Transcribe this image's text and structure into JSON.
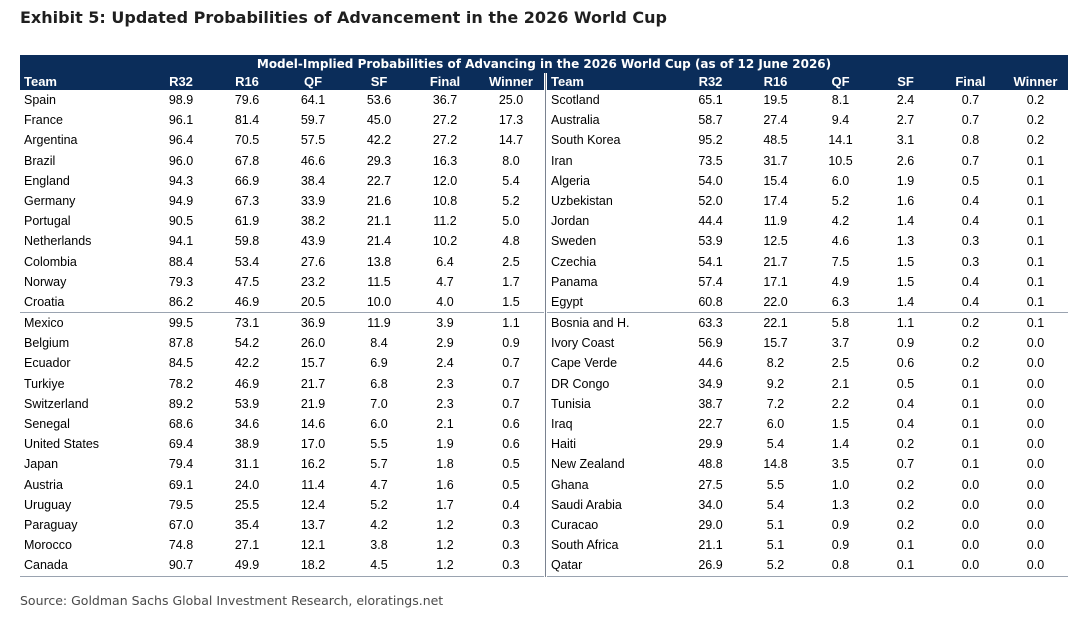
{
  "exhibit_title": "Exhibit 5: Updated Probabilities of Advancement in the 2026 World Cup",
  "source": "Source: Goldman Sachs Global Investment Research, eloratings.net",
  "chart_data": {
    "type": "table",
    "title": "Model-Implied Probabilities of Advancing in the 2026 World Cup (as of  12 June 2026)",
    "columns": [
      "Team",
      "R32",
      "R16",
      "QF",
      "SF",
      "Final",
      "Winner"
    ],
    "rows_left": [
      [
        "Spain",
        "98.9",
        "79.6",
        "64.1",
        "53.6",
        "36.7",
        "25.0"
      ],
      [
        "France",
        "96.1",
        "81.4",
        "59.7",
        "45.0",
        "27.2",
        "17.3"
      ],
      [
        "Argentina",
        "96.4",
        "70.5",
        "57.5",
        "42.2",
        "27.2",
        "14.7"
      ],
      [
        "Brazil",
        "96.0",
        "67.8",
        "46.6",
        "29.3",
        "16.3",
        "8.0"
      ],
      [
        "England",
        "94.3",
        "66.9",
        "38.4",
        "22.7",
        "12.0",
        "5.4"
      ],
      [
        "Germany",
        "94.9",
        "67.3",
        "33.9",
        "21.6",
        "10.8",
        "5.2"
      ],
      [
        "Portugal",
        "90.5",
        "61.9",
        "38.2",
        "21.1",
        "11.2",
        "5.0"
      ],
      [
        "Netherlands",
        "94.1",
        "59.8",
        "43.9",
        "21.4",
        "10.2",
        "4.8"
      ],
      [
        "Colombia",
        "88.4",
        "53.4",
        "27.6",
        "13.8",
        "6.4",
        "2.5"
      ],
      [
        "Norway",
        "79.3",
        "47.5",
        "23.2",
        "11.5",
        "4.7",
        "1.7"
      ],
      [
        "Croatia",
        "86.2",
        "46.9",
        "20.5",
        "10.0",
        "4.0",
        "1.5"
      ],
      [
        "Mexico",
        "99.5",
        "73.1",
        "36.9",
        "11.9",
        "3.9",
        "1.1"
      ],
      [
        "Belgium",
        "87.8",
        "54.2",
        "26.0",
        "8.4",
        "2.9",
        "0.9"
      ],
      [
        "Ecuador",
        "84.5",
        "42.2",
        "15.7",
        "6.9",
        "2.4",
        "0.7"
      ],
      [
        "Turkiye",
        "78.2",
        "46.9",
        "21.7",
        "6.8",
        "2.3",
        "0.7"
      ],
      [
        "Switzerland",
        "89.2",
        "53.9",
        "21.9",
        "7.0",
        "2.3",
        "0.7"
      ],
      [
        "Senegal",
        "68.6",
        "34.6",
        "14.6",
        "6.0",
        "2.1",
        "0.6"
      ],
      [
        "United States",
        "69.4",
        "38.9",
        "17.0",
        "5.5",
        "1.9",
        "0.6"
      ],
      [
        "Japan",
        "79.4",
        "31.1",
        "16.2",
        "5.7",
        "1.8",
        "0.5"
      ],
      [
        "Austria",
        "69.1",
        "24.0",
        "11.4",
        "4.7",
        "1.6",
        "0.5"
      ],
      [
        "Uruguay",
        "79.5",
        "25.5",
        "12.4",
        "5.2",
        "1.7",
        "0.4"
      ],
      [
        "Paraguay",
        "67.0",
        "35.4",
        "13.7",
        "4.2",
        "1.2",
        "0.3"
      ],
      [
        "Morocco",
        "74.8",
        "27.1",
        "12.1",
        "3.8",
        "1.2",
        "0.3"
      ],
      [
        "Canada",
        "90.7",
        "49.9",
        "18.2",
        "4.5",
        "1.2",
        "0.3"
      ]
    ],
    "rows_right": [
      [
        "Scotland",
        "65.1",
        "19.5",
        "8.1",
        "2.4",
        "0.7",
        "0.2"
      ],
      [
        "Australia",
        "58.7",
        "27.4",
        "9.4",
        "2.7",
        "0.7",
        "0.2"
      ],
      [
        "South Korea",
        "95.2",
        "48.5",
        "14.1",
        "3.1",
        "0.8",
        "0.2"
      ],
      [
        "Iran",
        "73.5",
        "31.7",
        "10.5",
        "2.6",
        "0.7",
        "0.1"
      ],
      [
        "Algeria",
        "54.0",
        "15.4",
        "6.0",
        "1.9",
        "0.5",
        "0.1"
      ],
      [
        "Uzbekistan",
        "52.0",
        "17.4",
        "5.2",
        "1.6",
        "0.4",
        "0.1"
      ],
      [
        "Jordan",
        "44.4",
        "11.9",
        "4.2",
        "1.4",
        "0.4",
        "0.1"
      ],
      [
        "Sweden",
        "53.9",
        "12.5",
        "4.6",
        "1.3",
        "0.3",
        "0.1"
      ],
      [
        "Czechia",
        "54.1",
        "21.7",
        "7.5",
        "1.5",
        "0.3",
        "0.1"
      ],
      [
        "Panama",
        "57.4",
        "17.1",
        "4.9",
        "1.5",
        "0.4",
        "0.1"
      ],
      [
        "Egypt",
        "60.8",
        "22.0",
        "6.3",
        "1.4",
        "0.4",
        "0.1"
      ],
      [
        "Bosnia and H.",
        "63.3",
        "22.1",
        "5.8",
        "1.1",
        "0.2",
        "0.1"
      ],
      [
        "Ivory Coast",
        "56.9",
        "15.7",
        "3.7",
        "0.9",
        "0.2",
        "0.0"
      ],
      [
        "Cape Verde",
        "44.6",
        "8.2",
        "2.5",
        "0.6",
        "0.2",
        "0.0"
      ],
      [
        "DR Congo",
        "34.9",
        "9.2",
        "2.1",
        "0.5",
        "0.1",
        "0.0"
      ],
      [
        "Tunisia",
        "38.7",
        "7.2",
        "2.2",
        "0.4",
        "0.1",
        "0.0"
      ],
      [
        "Iraq",
        "22.7",
        "6.0",
        "1.5",
        "0.4",
        "0.1",
        "0.0"
      ],
      [
        "Haiti",
        "29.9",
        "5.4",
        "1.4",
        "0.2",
        "0.1",
        "0.0"
      ],
      [
        "New Zealand",
        "48.8",
        "14.8",
        "3.5",
        "0.7",
        "0.1",
        "0.0"
      ],
      [
        "Ghana",
        "27.5",
        "5.5",
        "1.0",
        "0.2",
        "0.0",
        "0.0"
      ],
      [
        "Saudi Arabia",
        "34.0",
        "5.4",
        "1.3",
        "0.2",
        "0.0",
        "0.0"
      ],
      [
        "Curacao",
        "29.0",
        "5.1",
        "0.9",
        "0.2",
        "0.0",
        "0.0"
      ],
      [
        "South Africa",
        "21.1",
        "5.1",
        "0.9",
        "0.1",
        "0.0",
        "0.0"
      ],
      [
        "Qatar",
        "26.9",
        "5.2",
        "0.8",
        "0.1",
        "0.0",
        "0.0"
      ]
    ],
    "header_bg": "#0b2d5a",
    "header_fg": "#ffffff"
  }
}
